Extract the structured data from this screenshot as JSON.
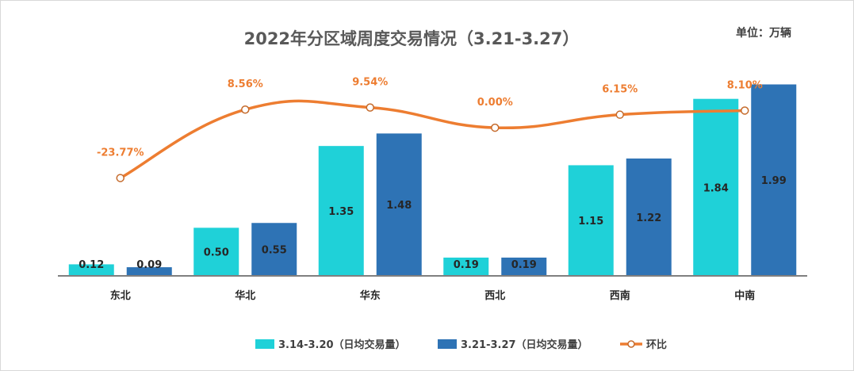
{
  "chart_data": {
    "type": "bar",
    "title": "2022年分区域周度交易情况（3.21-3.27）",
    "unit_label": "单位：万辆",
    "categories": [
      "东北",
      "华北",
      "华东",
      "西北",
      "西南",
      "中南"
    ],
    "series": [
      {
        "name": "3.14-3.20（日均交易量）",
        "kind": "bar",
        "color": "#1fd1d8",
        "values": [
          0.12,
          0.5,
          1.35,
          0.19,
          1.15,
          1.84
        ],
        "labels": [
          "0.12",
          "0.50",
          "1.35",
          "0.19",
          "1.15",
          "1.84"
        ]
      },
      {
        "name": "3.21-3.27（日均交易量）",
        "kind": "bar",
        "color": "#2e73b5",
        "values": [
          0.09,
          0.55,
          1.48,
          0.19,
          1.22,
          1.99
        ],
        "labels": [
          "0.09",
          "0.55",
          "1.48",
          "0.19",
          "1.22",
          "1.99"
        ]
      },
      {
        "name": "环比",
        "kind": "line",
        "color": "#ed7d31",
        "values": [
          -23.77,
          8.56,
          9.54,
          0.0,
          6.15,
          8.1
        ],
        "labels": [
          "-23.77%",
          "8.56%",
          "9.54%",
          "0.00%",
          "6.15%",
          "8.10%"
        ]
      }
    ],
    "ylim": [
      0,
      2.2
    ],
    "y2lim": [
      -70,
      30
    ],
    "legend_position": "bottom",
    "axis_color": "#7f7f7f",
    "grid": false
  }
}
